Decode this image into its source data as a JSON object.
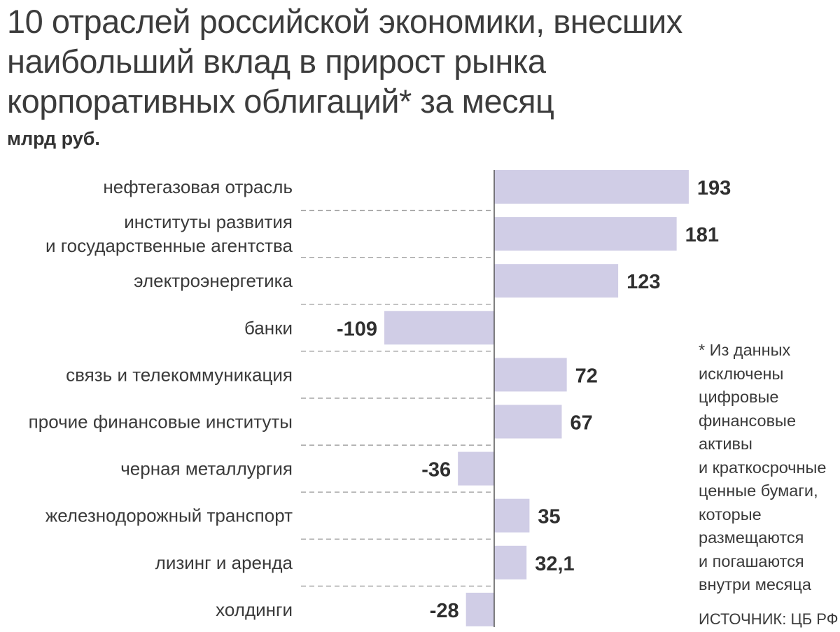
{
  "title_lines": [
    "10 отраслей российской экономики, внесших",
    "наибольший вклад в прирост рынка",
    "корпоративных облигаций* за месяц"
  ],
  "units": "млрд руб.",
  "footnote_lines": [
    "* Из данных",
    "исключены",
    "цифровые",
    "финансовые",
    "активы",
    "и краткосрочные",
    "ценные бумаги,",
    "которые",
    "размещаются",
    "и погашаются",
    "внутри месяца"
  ],
  "source": "ИСТОЧНИК: ЦБ РФ",
  "colors": {
    "bar": "#d0cde6",
    "axis": "#555555",
    "separator": "#999999",
    "text": "#3a3a3a"
  },
  "chart_data": {
    "type": "bar",
    "orientation": "horizontal",
    "categories": [
      [
        "нефтегазовая отрасль"
      ],
      [
        "институты развития",
        "и государственные агентства"
      ],
      [
        "электроэнергетика"
      ],
      [
        "банки"
      ],
      [
        "связь и телекоммуникация"
      ],
      [
        "прочие финансовые институты"
      ],
      [
        "черная металлургия"
      ],
      [
        "железнодорожный транспорт"
      ],
      [
        "лизинг и аренда"
      ],
      [
        "холдинги"
      ]
    ],
    "values": [
      193,
      181,
      123,
      -109,
      72,
      67,
      -36,
      35,
      32.1,
      -28
    ],
    "value_labels": [
      "193",
      "181",
      "123",
      "-109",
      "72",
      "67",
      "-36",
      "35",
      "32,1",
      "-28"
    ],
    "xlim": [
      -109,
      193
    ],
    "grid": false,
    "legend": "none"
  }
}
